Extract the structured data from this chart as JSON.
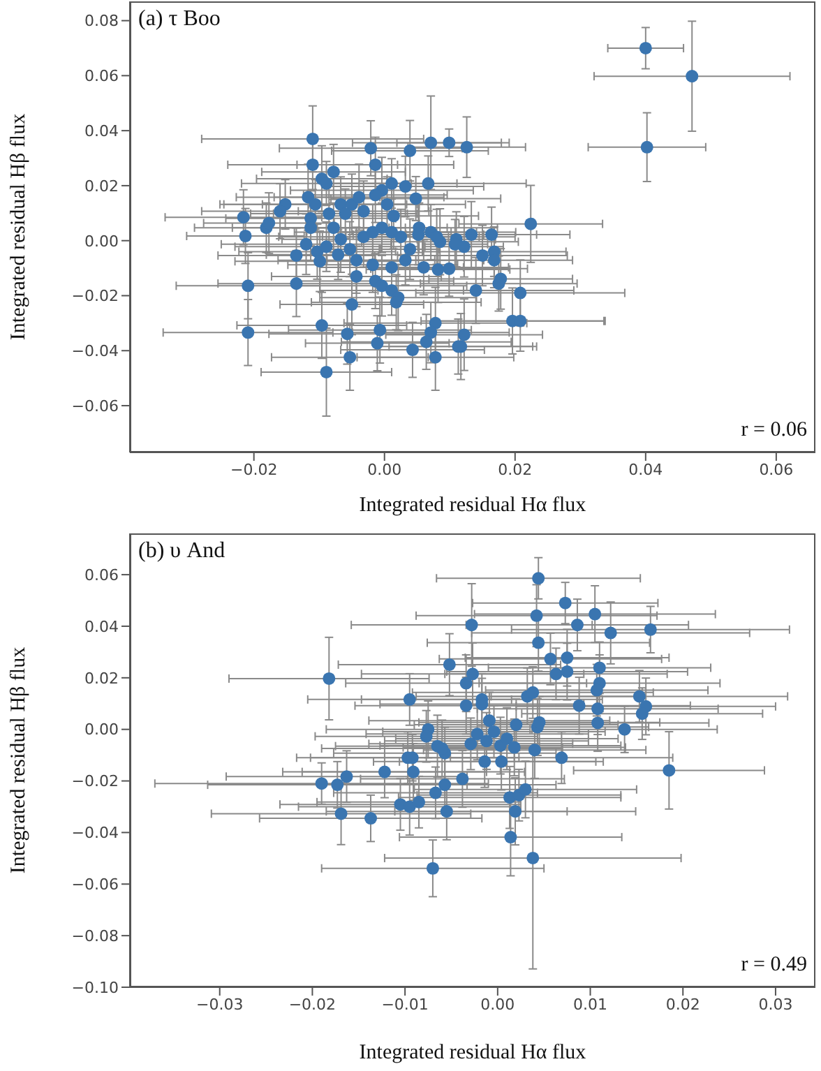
{
  "chart_data": [
    {
      "type": "scatter",
      "title": "(a) τ Boo",
      "xlabel": "Integrated residual Hα flux",
      "ylabel": "Integrated residual Hβ flux",
      "color": "#3a75b0",
      "marker": "circle",
      "annotations": [
        "r = 0.06"
      ],
      "xlim": [
        -0.039,
        0.066
      ],
      "ylim": [
        -0.077,
        0.087
      ],
      "xticks": [
        {
          "value": -0.02,
          "label": "−0.02"
        },
        {
          "value": 0,
          "label": "0.00"
        },
        {
          "value": 0.02,
          "label": "0.02"
        },
        {
          "value": 0.04,
          "label": "0.04"
        },
        {
          "value": 0.06,
          "label": "0.06"
        }
      ],
      "yticks": [
        {
          "value": -0.06,
          "label": "−0.06"
        },
        {
          "value": -0.04,
          "label": "−0.04"
        },
        {
          "value": -0.02,
          "label": "−0.02"
        },
        {
          "value": 0,
          "label": "0.00"
        },
        {
          "value": 0.02,
          "label": "0.02"
        },
        {
          "value": 0.04,
          "label": "0.04"
        },
        {
          "value": 0.06,
          "label": "0.06"
        },
        {
          "value": 0.08,
          "label": "0.08"
        }
      ],
      "x": [
        -0.011,
        -0.0021,
        0.0039,
        0.0071,
        0.0099,
        0.0126,
        -0.011,
        -0.0014,
        -0.0096,
        -0.0078,
        -0.0089,
        0.0067,
        0.0032,
        0.0011,
        -0.0004,
        -0.0014,
        0.0048,
        -0.0152,
        -0.016,
        -0.0117,
        -0.0106,
        -0.0067,
        -0.005,
        -0.0039,
        -0.0085,
        -0.006,
        -0.0032,
        0.0004,
        0.0014,
        -0.0216,
        -0.0181,
        -0.0177,
        -0.0113,
        -0.0113,
        -0.0078,
        -0.0213,
        -0.012,
        -0.0103,
        -0.0089,
        -0.0067,
        -0.0053,
        -0.0032,
        -0.0018,
        -0.0004,
        0.0011,
        0.0025,
        0.0039,
        0.0053,
        0.0071,
        0.0085,
        0.011,
        0.0052,
        0.008,
        0.0108,
        0.0122,
        0.0133,
        0.0164,
        0.0168,
        0.015,
        0.0168,
        0.0224,
        -0.0135,
        -0.0099,
        -0.0071,
        -0.0043,
        -0.0018,
        0.0011,
        0.0032,
        0.006,
        0.0082,
        0.0099,
        0.0178,
        0.0175,
        -0.0043,
        -0.0135,
        -0.0209,
        -0.0014,
        -0.0004,
        0.0011,
        0.0021,
        0.0018,
        -0.005,
        0.014,
        0.0208,
        -0.0096,
        -0.0057,
        -0.0007,
        -0.0011,
        -0.0209,
        -0.0053,
        -0.0089,
        0.0043,
        0.0078,
        0.0071,
        0.0064,
        0.0078,
        0.0196,
        0.0208,
        0.0122,
        0.0117,
        0.0113,
        0.04,
        0.0471,
        0.0402
      ],
      "values": [
        0.037,
        0.0336,
        0.0327,
        0.0356,
        0.0356,
        0.034,
        0.0276,
        0.0276,
        0.0225,
        0.025,
        0.0208,
        0.0208,
        0.0197,
        0.0208,
        0.0183,
        0.0166,
        0.0153,
        0.0132,
        0.0107,
        0.0158,
        0.0132,
        0.0132,
        0.0132,
        0.0158,
        0.0098,
        0.0098,
        0.0107,
        0.0132,
        0.009,
        0.0085,
        0.0047,
        0.0064,
        0.0081,
        0.0047,
        0.0047,
        0.0017,
        -0.0013,
        -0.004,
        -0.0022,
        0.0005,
        -0.0031,
        0.0014,
        0.0031,
        0.0047,
        0.0031,
        0.0014,
        -0.0031,
        0.0047,
        0.0031,
        -0.0004,
        0.0005,
        0.0022,
        0.0014,
        -0.0013,
        -0.0022,
        0.0022,
        0.0022,
        -0.004,
        -0.0054,
        -0.0071,
        0.0061,
        -0.0054,
        -0.0075,
        -0.0051,
        -0.0071,
        -0.0088,
        -0.0097,
        -0.0071,
        -0.0097,
        -0.0105,
        -0.0102,
        -0.0139,
        -0.0156,
        -0.013,
        -0.0156,
        -0.0164,
        -0.0147,
        -0.0164,
        -0.0181,
        -0.0207,
        -0.0224,
        -0.0232,
        -0.0181,
        -0.019,
        -0.0308,
        -0.0339,
        -0.0325,
        -0.0373,
        -0.0334,
        -0.0424,
        -0.0478,
        -0.0397,
        -0.03,
        -0.0334,
        -0.0368,
        -0.0424,
        -0.0292,
        -0.0292,
        -0.0342,
        -0.0385,
        -0.0385,
        0.07,
        0.0598,
        0.034
      ],
      "xerrors": [
        0.017,
        0.014,
        0.012,
        0.012,
        0.008,
        0.009,
        0.013,
        0.012,
        0.01,
        0.011,
        0.013,
        0.015,
        0.012,
        0.01,
        0.014,
        0.011,
        0.013,
        0.01,
        0.012,
        0.011,
        0.014,
        0.012,
        0.01,
        0.013,
        0.012,
        0.011,
        0.01,
        0.012,
        0.013,
        0.012,
        0.011,
        0.01,
        0.013,
        0.012,
        0.011,
        0.009,
        0.013,
        0.012,
        0.014,
        0.009,
        0.0045,
        0.013,
        0.012,
        0.01,
        0.013,
        0.012,
        0.0045,
        0.012,
        0.013,
        0.012,
        0.006,
        0.01,
        0.012,
        0.005,
        0.006,
        0.01,
        0.012,
        0.011,
        0.013,
        0.012,
        0.011,
        0.012,
        0.013,
        0.011,
        0.012,
        0.013,
        0.011,
        0.012,
        0.013,
        0.011,
        0.012,
        0.011,
        0.012,
        0.013,
        0.012,
        0.011,
        0.012,
        0.013,
        0.011,
        0.012,
        0.013,
        0.011,
        0.015,
        0.016,
        0.013,
        0.012,
        0.014,
        0.011,
        0.013,
        0.012,
        0.01,
        0.011,
        0.014,
        0.012,
        0.013,
        0.012,
        0.014,
        0.013,
        0.012,
        0.011,
        0.012,
        0.0058,
        0.015,
        0.009
      ],
      "errors": [
        0.012,
        0.01,
        0.011,
        0.017,
        0.005,
        0.011,
        0.009,
        0.01,
        0.012,
        0.01,
        0.008,
        0.01,
        0.011,
        0.009,
        0.012,
        0.01,
        0.008,
        0.009,
        0.01,
        0.012,
        0.009,
        0.01,
        0.011,
        0.012,
        0.01,
        0.009,
        0.011,
        0.01,
        0.012,
        0.01,
        0.009,
        0.011,
        0.01,
        0.012,
        0.009,
        0.01,
        0.011,
        0.01,
        0.009,
        0.012,
        0.01,
        0.011,
        0.01,
        0.009,
        0.012,
        0.01,
        0.011,
        0.009,
        0.01,
        0.012,
        0.01,
        0.011,
        0.01,
        0.009,
        0.011,
        0.012,
        0.01,
        0.009,
        0.011,
        0.01,
        0.014,
        0.01,
        0.011,
        0.009,
        0.012,
        0.01,
        0.011,
        0.009,
        0.01,
        0.012,
        0.01,
        0.011,
        0.01,
        0.011,
        0.012,
        0.012,
        0.01,
        0.011,
        0.009,
        0.012,
        0.01,
        0.011,
        0.012,
        0.012,
        0.012,
        0.011,
        0.012,
        0.01,
        0.012,
        0.012,
        0.016,
        0.01,
        0.013,
        0.011,
        0.01,
        0.012,
        0.012,
        0.011,
        0.013,
        0.012,
        0.01,
        0.0075,
        0.02,
        0.0125
      ]
    },
    {
      "type": "scatter",
      "title": "(b) υ And",
      "xlabel": "Integrated residual Hα flux",
      "ylabel": "Integrated residual Hβ flux",
      "color": "#3a75b0",
      "marker": "circle",
      "annotations": [
        "r = 0.49"
      ],
      "xlim": [
        -0.0397,
        0.0343
      ],
      "ylim": [
        -0.1,
        0.076
      ],
      "xticks": [
        {
          "value": -0.03,
          "label": "−0.03"
        },
        {
          "value": -0.02,
          "label": "−0.02"
        },
        {
          "value": -0.01,
          "label": "−0.01"
        },
        {
          "value": 0,
          "label": "0.00"
        },
        {
          "value": 0.01,
          "label": "0.01"
        },
        {
          "value": 0.02,
          "label": "0.02"
        },
        {
          "value": 0.03,
          "label": "0.03"
        }
      ],
      "yticks": [
        {
          "value": -0.1,
          "label": "−0.10"
        },
        {
          "value": -0.08,
          "label": "−0.08"
        },
        {
          "value": -0.06,
          "label": "−0.06"
        },
        {
          "value": -0.04,
          "label": "−0.04"
        },
        {
          "value": -0.02,
          "label": "−0.02"
        },
        {
          "value": 0,
          "label": "0.00"
        },
        {
          "value": 0.02,
          "label": "0.02"
        },
        {
          "value": 0.04,
          "label": "0.04"
        },
        {
          "value": 0.06,
          "label": "0.06"
        }
      ],
      "x": [
        -0.0182,
        -0.0052,
        -0.0095,
        -0.0075,
        -0.0077,
        -0.0065,
        -0.0057,
        -0.006,
        -0.0097,
        -0.0092,
        -0.0091,
        -0.0122,
        -0.019,
        -0.0173,
        -0.0163,
        -0.0057,
        -0.0067,
        -0.0105,
        -0.0095,
        -0.0085,
        -0.0169,
        -0.0137,
        -0.0055,
        -0.007,
        0.0044,
        0.0073,
        0.0042,
        0.0105,
        0.0086,
        0.0122,
        0.0165,
        -0.0028,
        0.0044,
        0.0057,
        0.0075,
        0.0063,
        0.0075,
        0.011,
        0.011,
        0.0107,
        -0.0034,
        -0.0027,
        -0.0017,
        -0.0034,
        -0.0017,
        0.0032,
        0.0038,
        0.0088,
        0.0108,
        0.0108,
        0.0153,
        0.016,
        0.0156,
        0.0137,
        -0.0009,
        -0.0022,
        -0.0012,
        -0.0004,
        0.0003,
        0.001,
        0.002,
        0.0043,
        0.0045,
        0.004,
        -0.0029,
        0.0018,
        -0.0014,
        0.0004,
        0.0069,
        -0.0038,
        0.0013,
        0.0023,
        0.003,
        0.0019,
        0.0014,
        0.0038,
        0.0185
      ],
      "values": [
        0.0197,
        0.0251,
        0.0116,
        0,
        -0.0027,
        -0.0065,
        -0.0092,
        -0.0074,
        -0.011,
        -0.011,
        -0.0165,
        -0.0165,
        -0.021,
        -0.0215,
        -0.0183,
        -0.0215,
        -0.0246,
        -0.0291,
        -0.03,
        -0.0282,
        -0.0327,
        -0.0345,
        -0.0318,
        -0.0539,
        0.0586,
        0.049,
        0.0441,
        0.0447,
        0.0405,
        0.0374,
        0.0387,
        0.0405,
        0.0336,
        0.0273,
        0.0278,
        0.0215,
        0.0224,
        0.0239,
        0.0179,
        0.0152,
        0.0179,
        0.0215,
        0.0116,
        0.0092,
        0.0098,
        0.0128,
        0.0143,
        0.0092,
        0.008,
        0.0025,
        0.0128,
        0.0089,
        0.0061,
        0,
        0.0034,
        -0.0018,
        -0.0045,
        -0.0009,
        -0.0063,
        -0.0036,
        0.0018,
        0.0009,
        0.0027,
        -0.008,
        -0.0056,
        -0.007,
        -0.0125,
        -0.0125,
        -0.011,
        -0.0192,
        -0.0264,
        -0.0255,
        -0.0233,
        -0.0318,
        -0.0418,
        -0.0499,
        -0.0159
      ],
      "xerrors": [
        0.0108,
        0.012,
        0.011,
        0.011,
        0.012,
        0.011,
        0.012,
        0.013,
        0.012,
        0.011,
        0.012,
        0.011,
        0.018,
        0.014,
        0.013,
        0.012,
        0.011,
        0.013,
        0.012,
        0.011,
        0.014,
        0.012,
        0.013,
        0.012,
        0.011,
        0.01,
        0.013,
        0.013,
        0.012,
        0.015,
        0.015,
        0.013,
        0.012,
        0.012,
        0.011,
        0.012,
        0.013,
        0.012,
        0.013,
        0.012,
        0.013,
        0.012,
        0.013,
        0.012,
        0.011,
        0.012,
        0.013,
        0.012,
        0.013,
        0.012,
        0.016,
        0.014,
        0.013,
        0.01,
        0.013,
        0.012,
        0.011,
        0.012,
        0.013,
        0.012,
        0.011,
        0.012,
        0.013,
        0.012,
        0.011,
        0.012,
        0.012,
        0.011,
        0.012,
        0.011,
        0.012,
        0.011,
        0.012,
        0.013,
        0.012,
        0.016,
        0.0103
      ],
      "errors": [
        0.016,
        0.012,
        0.01,
        0.011,
        0.01,
        0.012,
        0.01,
        0.011,
        0.01,
        0.009,
        0.011,
        0.01,
        0.008,
        0.009,
        0.01,
        0.011,
        0.01,
        0.01,
        0.011,
        0.01,
        0.012,
        0.009,
        0.011,
        0.011,
        0.008,
        0.008,
        0.012,
        0.011,
        0.01,
        0.012,
        0.009,
        0.016,
        0.011,
        0.01,
        0.011,
        0.01,
        0.011,
        0.01,
        0.011,
        0.01,
        0.011,
        0.012,
        0.01,
        0.011,
        0.01,
        0.011,
        0.01,
        0.011,
        0.01,
        0.011,
        0.01,
        0.011,
        0.01,
        0.009,
        0.011,
        0.01,
        0.011,
        0.01,
        0.011,
        0.012,
        0.01,
        0.011,
        0.01,
        0.011,
        0.01,
        0.011,
        0.01,
        0.011,
        0.01,
        0.011,
        0.012,
        0.01,
        0.011,
        0.013,
        0.015,
        0.043,
        0.015
      ]
    }
  ]
}
